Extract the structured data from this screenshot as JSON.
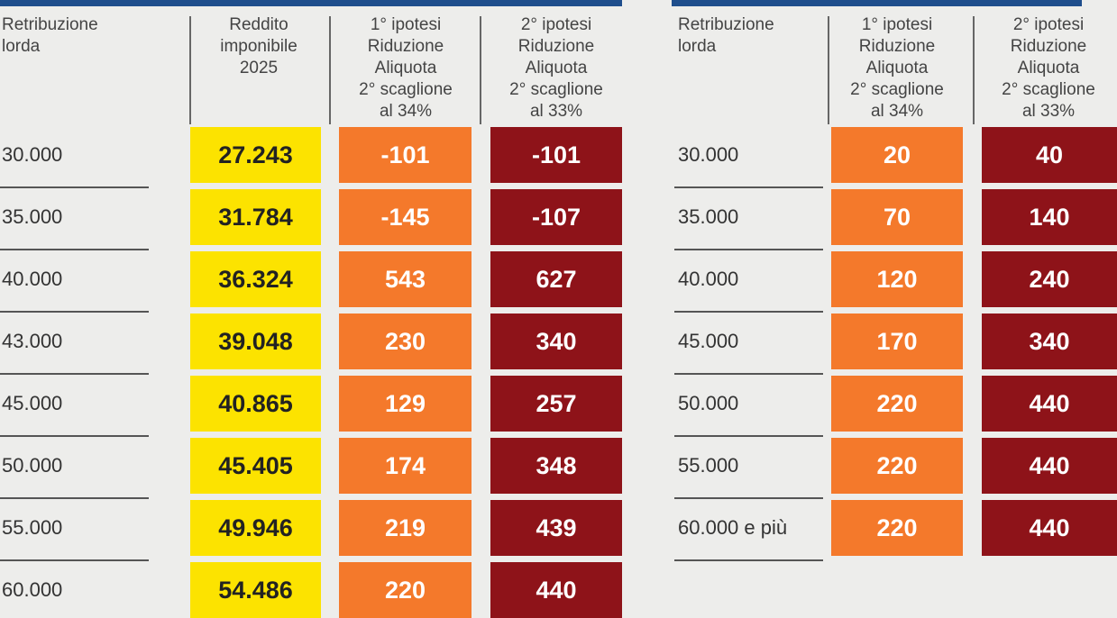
{
  "chart_data": [
    {
      "type": "table",
      "headers": {
        "gross": [
          "Retribuzione",
          "lorda"
        ],
        "taxable": [
          "Reddito",
          "imponibile",
          "2025"
        ],
        "hyp1": [
          "1° ipotesi",
          "Riduzione",
          "Aliquota",
          "2° scaglione",
          "al 34%"
        ],
        "hyp2": [
          "2° ipotesi",
          "Riduzione",
          "Aliquota",
          "2° scaglione",
          "al 33%"
        ]
      },
      "rows": [
        {
          "gross": "30.000",
          "taxable": "27.243",
          "hyp1": "-101",
          "hyp2": "-101"
        },
        {
          "gross": "35.000",
          "taxable": "31.784",
          "hyp1": "-145",
          "hyp2": "-107"
        },
        {
          "gross": "40.000",
          "taxable": "36.324",
          "hyp1": "543",
          "hyp2": "627"
        },
        {
          "gross": "43.000",
          "taxable": "39.048",
          "hyp1": "230",
          "hyp2": "340"
        },
        {
          "gross": "45.000",
          "taxable": "40.865",
          "hyp1": "129",
          "hyp2": "257"
        },
        {
          "gross": "50.000",
          "taxable": "45.405",
          "hyp1": "174",
          "hyp2": "348"
        },
        {
          "gross": "55.000",
          "taxable": "49.946",
          "hyp1": "219",
          "hyp2": "439"
        },
        {
          "gross": "60.000",
          "taxable": "54.486",
          "hyp1": "220",
          "hyp2": "440"
        }
      ]
    },
    {
      "type": "table",
      "headers": {
        "gross": [
          "Retribuzione",
          "lorda"
        ],
        "hyp1": [
          "1° ipotesi",
          "Riduzione",
          "Aliquota",
          "2° scaglione",
          "al 34%"
        ],
        "hyp2": [
          "2° ipotesi",
          "Riduzione",
          "Aliquota",
          "2° scaglione",
          "al 33%"
        ]
      },
      "rows": [
        {
          "gross": "30.000",
          "hyp1": "20",
          "hyp2": "40"
        },
        {
          "gross": "35.000",
          "hyp1": "70",
          "hyp2": "140"
        },
        {
          "gross": "40.000",
          "hyp1": "120",
          "hyp2": "240"
        },
        {
          "gross": "45.000",
          "hyp1": "170",
          "hyp2": "340"
        },
        {
          "gross": "50.000",
          "hyp1": "220",
          "hyp2": "440"
        },
        {
          "gross": "55.000",
          "hyp1": "220",
          "hyp2": "440"
        },
        {
          "gross": "60.000 e più",
          "hyp1": "220",
          "hyp2": "440"
        }
      ]
    }
  ],
  "colors": {
    "header_bar": "#1f4e8c",
    "taxable_cell": "#fce300",
    "hyp1_cell": "#f4792b",
    "hyp2_cell": "#8e1319"
  }
}
